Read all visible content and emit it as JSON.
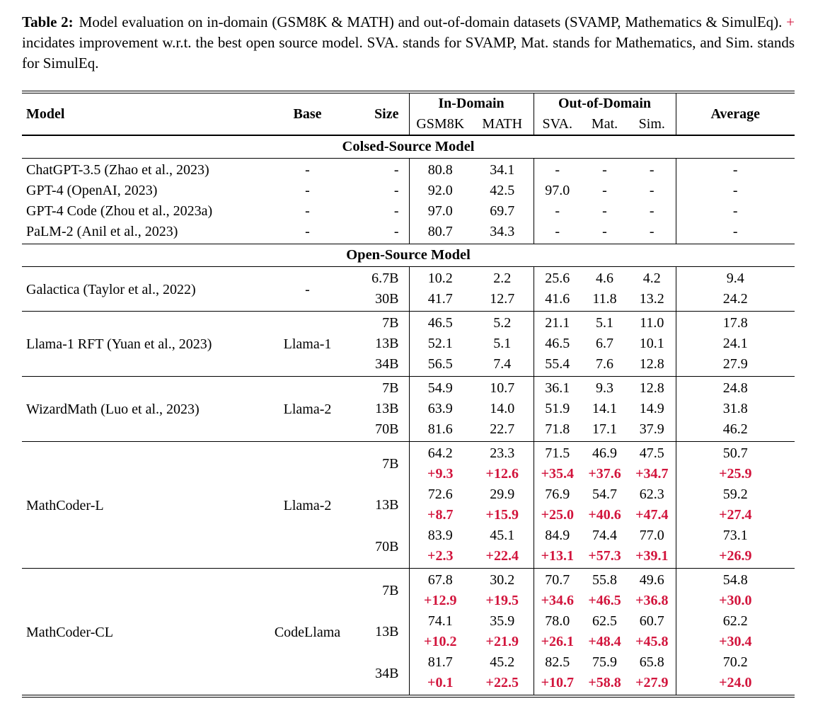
{
  "colors": {
    "accent_red": "#d2143c",
    "text": "#000000",
    "background": "#ffffff"
  },
  "caption": {
    "label": "Table 2:",
    "before_plus": "Model evaluation on in-domain (GSM8K & MATH) and out-of-domain datasets (SVAMP, Mathematics & SimulEq). ",
    "plus": "+",
    "after_plus": " incidates improvement w.r.t. the best open source model. SVA. stands for SVAMP, Mat. stands for Mathematics, and Sim. stands for SimulEq."
  },
  "table": {
    "header": {
      "model": "Model",
      "base": "Base",
      "size": "Size",
      "in_domain": "In-Domain",
      "out_of_domain": "Out-of-Domain",
      "gsm8k": "GSM8K",
      "math": "MATH",
      "sva": "SVA.",
      "mat": "Mat.",
      "sim": "Sim.",
      "average": "Average"
    },
    "sections": [
      {
        "title": "Colsed-Source Model",
        "blocks": [
          {
            "per_row": true,
            "rows": [
              {
                "model": "ChatGPT-3.5 (Zhao et al., 2023)",
                "base": "-",
                "size": "-",
                "values": [
                  "80.8",
                  "34.1",
                  "-",
                  "-",
                  "-",
                  "-"
                ]
              },
              {
                "model": "GPT-4 (OpenAI, 2023)",
                "base": "-",
                "size": "-",
                "values": [
                  "92.0",
                  "42.5",
                  "97.0",
                  "-",
                  "-",
                  "-"
                ]
              },
              {
                "model": "GPT-4 Code (Zhou et al., 2023a)",
                "base": "-",
                "size": "-",
                "values": [
                  "97.0",
                  "69.7",
                  "-",
                  "-",
                  "-",
                  "-"
                ]
              },
              {
                "model": "PaLM-2 (Anil et al., 2023)",
                "base": "-",
                "size": "-",
                "values": [
                  "80.7",
                  "34.3",
                  "-",
                  "-",
                  "-",
                  "-"
                ]
              }
            ]
          }
        ]
      },
      {
        "title": "Open-Source Model",
        "blocks": [
          {
            "model": "Galactica (Taylor et al., 2022)",
            "base": "-",
            "rows": [
              {
                "size": "6.7B",
                "values": [
                  "10.2",
                  "2.2",
                  "25.6",
                  "4.6",
                  "4.2",
                  "9.4"
                ]
              },
              {
                "size": "30B",
                "values": [
                  "41.7",
                  "12.7",
                  "41.6",
                  "11.8",
                  "13.2",
                  "24.2"
                ]
              }
            ]
          },
          {
            "model": "Llama-1 RFT (Yuan et al., 2023)",
            "base": "Llama-1",
            "rows": [
              {
                "size": "7B",
                "values": [
                  "46.5",
                  "5.2",
                  "21.1",
                  "5.1",
                  "11.0",
                  "17.8"
                ]
              },
              {
                "size": "13B",
                "values": [
                  "52.1",
                  "5.1",
                  "46.5",
                  "6.7",
                  "10.1",
                  "24.1"
                ]
              },
              {
                "size": "34B",
                "values": [
                  "56.5",
                  "7.4",
                  "55.4",
                  "7.6",
                  "12.8",
                  "27.9"
                ]
              }
            ]
          },
          {
            "model": "WizardMath (Luo et al., 2023)",
            "base": "Llama-2",
            "rows": [
              {
                "size": "7B",
                "values": [
                  "54.9",
                  "10.7",
                  "36.1",
                  "9.3",
                  "12.8",
                  "24.8"
                ]
              },
              {
                "size": "13B",
                "values": [
                  "63.9",
                  "14.0",
                  "51.9",
                  "14.1",
                  "14.9",
                  "31.8"
                ]
              },
              {
                "size": "70B",
                "values": [
                  "81.6",
                  "22.7",
                  "71.8",
                  "17.1",
                  "37.9",
                  "46.2"
                ]
              }
            ]
          },
          {
            "model": "MathCoder-L",
            "base": "Llama-2",
            "rows": [
              {
                "size": "7B",
                "values": [
                  "64.2",
                  "23.3",
                  "71.5",
                  "46.9",
                  "47.5",
                  "50.7"
                ],
                "deltas": [
                  "+9.3",
                  "+12.6",
                  "+35.4",
                  "+37.6",
                  "+34.7",
                  "+25.9"
                ]
              },
              {
                "size": "13B",
                "values": [
                  "72.6",
                  "29.9",
                  "76.9",
                  "54.7",
                  "62.3",
                  "59.2"
                ],
                "deltas": [
                  "+8.7",
                  "+15.9",
                  "+25.0",
                  "+40.6",
                  "+47.4",
                  "+27.4"
                ]
              },
              {
                "size": "70B",
                "values": [
                  "83.9",
                  "45.1",
                  "84.9",
                  "74.4",
                  "77.0",
                  "73.1"
                ],
                "deltas": [
                  "+2.3",
                  "+22.4",
                  "+13.1",
                  "+57.3",
                  "+39.1",
                  "+26.9"
                ]
              }
            ]
          },
          {
            "model": "MathCoder-CL",
            "base": "CodeLlama",
            "rows": [
              {
                "size": "7B",
                "values": [
                  "67.8",
                  "30.2",
                  "70.7",
                  "55.8",
                  "49.6",
                  "54.8"
                ],
                "deltas": [
                  "+12.9",
                  "+19.5",
                  "+34.6",
                  "+46.5",
                  "+36.8",
                  "+30.0"
                ]
              },
              {
                "size": "13B",
                "values": [
                  "74.1",
                  "35.9",
                  "78.0",
                  "62.5",
                  "60.7",
                  "62.2"
                ],
                "deltas": [
                  "+10.2",
                  "+21.9",
                  "+26.1",
                  "+48.4",
                  "+45.8",
                  "+30.4"
                ]
              },
              {
                "size": "34B",
                "values": [
                  "81.7",
                  "45.2",
                  "82.5",
                  "75.9",
                  "65.8",
                  "70.2"
                ],
                "deltas": [
                  "+0.1",
                  "+22.5",
                  "+10.7",
                  "+58.8",
                  "+27.9",
                  "+24.0"
                ]
              }
            ]
          }
        ]
      }
    ]
  }
}
